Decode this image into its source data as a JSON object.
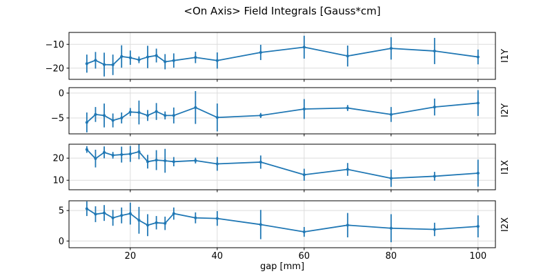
{
  "chart_data": {
    "type": "line",
    "title": "<On Axis> Field Integrals [Gauss*cm]",
    "xlabel": "gap [mm]",
    "legend": "none",
    "grid": true,
    "line_color": "#1f77b4",
    "grid_color": "#dcdcdc",
    "frame_color": "#000000",
    "marker": "dot-with-vertical-errorbar",
    "x": [
      10,
      12,
      14,
      16,
      18,
      20,
      22,
      24,
      26,
      28,
      30,
      35,
      40,
      50,
      60,
      70,
      80,
      90,
      100
    ],
    "xticks": [
      20,
      40,
      60,
      80,
      100
    ],
    "xlim": [
      5.9,
      104.0
    ],
    "subplots": [
      {
        "label": "I1Y",
        "yticks": [
          -10,
          -20
        ],
        "ylim": [
          -24.7,
          -5.0
        ],
        "y": [
          -18.1,
          -16.7,
          -18.5,
          -18.6,
          -15.1,
          -15.6,
          -16.5,
          -15.3,
          -14.7,
          -17.3,
          -16.8,
          -15.5,
          -16.8,
          -13.4,
          -11.2,
          -14.9,
          -11.7,
          -12.8,
          -15.3
        ],
        "yerr": [
          3.8,
          3.5,
          5.0,
          4.3,
          4.7,
          3.0,
          1.4,
          4.7,
          2.9,
          3.2,
          3.0,
          2.4,
          3.4,
          3.2,
          4.8,
          4.4,
          4.7,
          5.5,
          3.1
        ]
      },
      {
        "label": "I2Y",
        "yticks": [
          0,
          -5
        ],
        "ylim": [
          -8.2,
          1.1
        ],
        "y": [
          -5.9,
          -4.3,
          -4.5,
          -5.5,
          -5.0,
          -3.8,
          -3.9,
          -4.5,
          -3.7,
          -4.5,
          -4.5,
          -2.9,
          -4.9,
          -4.5,
          -3.2,
          -3.0,
          -4.3,
          -2.8,
          -2.0
        ],
        "yerr": [
          2.0,
          1.5,
          2.4,
          1.4,
          1.1,
          0.8,
          2.4,
          1.1,
          1.7,
          0.8,
          1.6,
          3.3,
          2.8,
          0.5,
          2.0,
          0.6,
          1.5,
          1.7,
          2.6
        ]
      },
      {
        "label": "I1X",
        "yticks": [
          20,
          10
        ],
        "ylim": [
          5.7,
          26.3
        ],
        "y": [
          23.9,
          19.8,
          22.6,
          21.3,
          21.6,
          21.9,
          22.9,
          18.4,
          19.1,
          18.8,
          18.4,
          18.9,
          17.4,
          18.2,
          12.5,
          14.9,
          10.9,
          11.8,
          13.2
        ],
        "yerr": [
          1.5,
          4.0,
          2.7,
          1.5,
          3.6,
          3.6,
          3.4,
          3.1,
          4.5,
          5.4,
          2.1,
          1.3,
          3.1,
          3.0,
          2.7,
          2.9,
          3.9,
          2.0,
          6.1
        ]
      },
      {
        "label": "I2X",
        "yticks": [
          5,
          0
        ],
        "ylim": [
          -1.1,
          6.6
        ],
        "y": [
          5.3,
          4.4,
          4.6,
          3.8,
          4.2,
          4.5,
          3.4,
          2.6,
          3.0,
          2.9,
          4.5,
          3.8,
          3.7,
          2.7,
          1.5,
          2.6,
          2.1,
          1.9,
          2.4
        ],
        "yerr": [
          1.2,
          1.3,
          1.3,
          1.3,
          1.3,
          1.8,
          2.2,
          1.8,
          1.1,
          1.1,
          1.0,
          0.9,
          1.2,
          2.4,
          0.8,
          2.0,
          2.3,
          1.1,
          1.8
        ]
      }
    ]
  }
}
